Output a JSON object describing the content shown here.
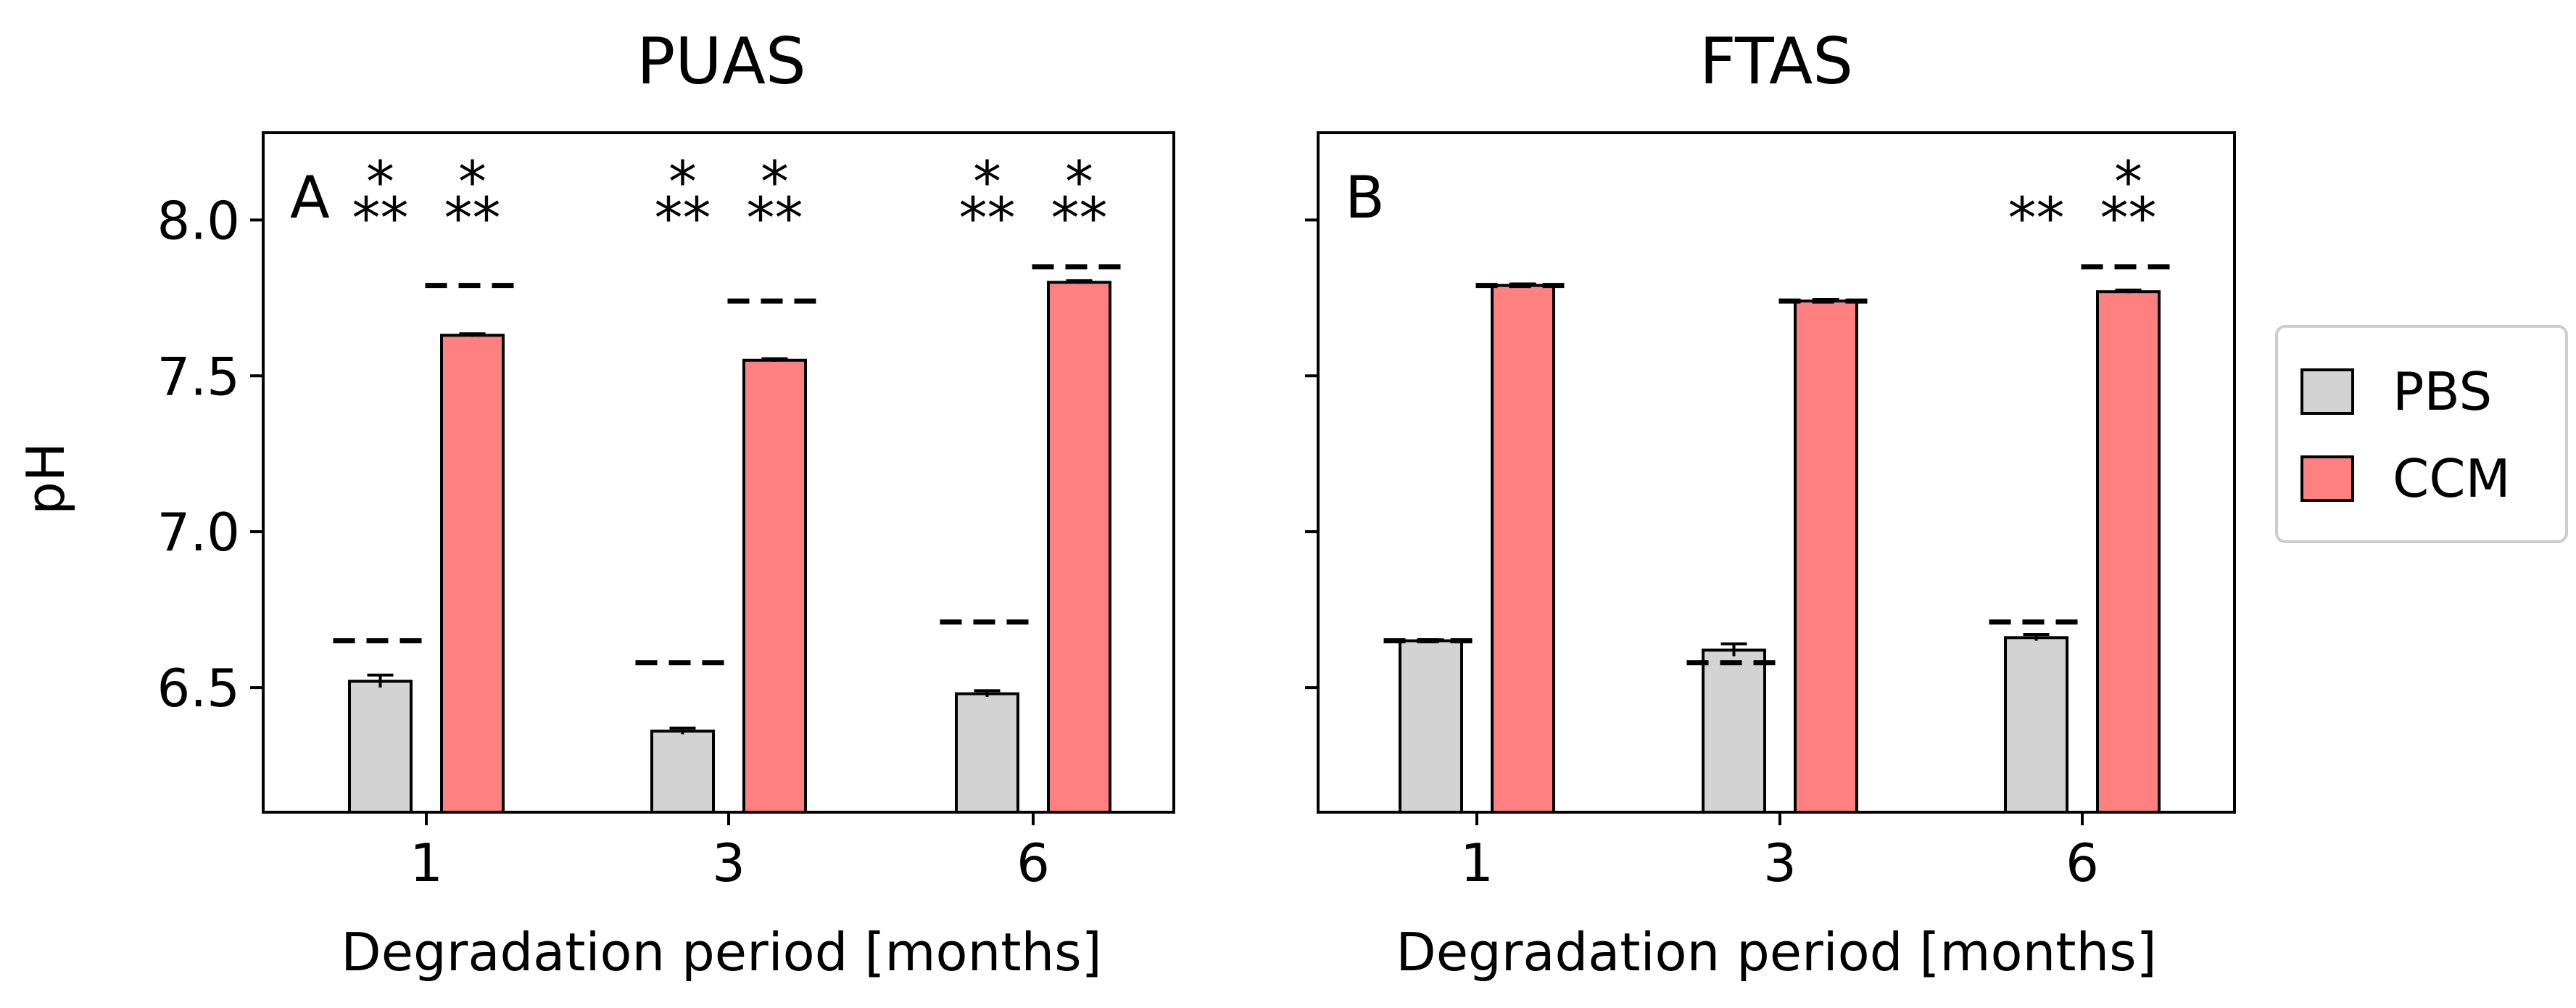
{
  "colors": {
    "PBS": "#d3d3d3",
    "CCM": "#ff8080",
    "edge": "#000000"
  },
  "ylabel": "pH",
  "legend": {
    "placement": "right",
    "entries": [
      {
        "label": "PBS",
        "color": "#d3d3d3"
      },
      {
        "label": "CCM",
        "color": "#ff8080"
      }
    ]
  },
  "chart_data": [
    {
      "type": "bar",
      "panel": "A",
      "title": "PUAS",
      "xlabel": "Degradation period [months]",
      "ylabel": "pH",
      "categories": [
        "1",
        "3",
        "6"
      ],
      "ylim": [
        6.1,
        8.28
      ],
      "yticks": [
        "6.5",
        "7.0",
        "7.5",
        "8.0"
      ],
      "series": [
        {
          "name": "PBS",
          "values": [
            6.52,
            6.36,
            6.48
          ],
          "errors": [
            0.02,
            0.01,
            0.01
          ],
          "dashed_reference": [
            6.65,
            6.58,
            6.71
          ],
          "annotations": [
            "",
            "",
            ""
          ]
        },
        {
          "name": "CCM",
          "values": [
            7.63,
            7.55,
            7.8
          ],
          "errors": [
            0.005,
            0.005,
            0.005
          ],
          "dashed_reference": [
            7.79,
            7.74,
            7.85
          ],
          "annotations": [
            "",
            "",
            ""
          ]
        }
      ],
      "significance": [
        {
          "category": "1",
          "series": "PBS",
          "label": "***"
        },
        {
          "category": "1",
          "series": "CCM",
          "label": "***"
        },
        {
          "category": "3",
          "series": "PBS",
          "label": "***"
        },
        {
          "category": "3",
          "series": "CCM",
          "label": "***"
        },
        {
          "category": "6",
          "series": "PBS",
          "label": "***"
        },
        {
          "category": "6",
          "series": "CCM",
          "label": "***"
        }
      ],
      "grid": false
    },
    {
      "type": "bar",
      "panel": "B",
      "title": "FTAS",
      "xlabel": "Degradation period [months]",
      "ylabel": "",
      "categories": [
        "1",
        "3",
        "6"
      ],
      "ylim": [
        6.1,
        8.28
      ],
      "yticks": [
        "",
        "",
        "",
        ""
      ],
      "series": [
        {
          "name": "PBS",
          "values": [
            6.65,
            6.62,
            6.66
          ],
          "errors": [
            0.003,
            0.02,
            0.01
          ],
          "dashed_reference": [
            6.65,
            6.58,
            6.71
          ]
        },
        {
          "name": "CCM",
          "values": [
            7.79,
            7.74,
            7.77
          ],
          "errors": [
            0.005,
            0.005,
            0.005
          ],
          "dashed_reference": [
            7.79,
            7.74,
            7.85
          ]
        }
      ],
      "significance": [
        {
          "category": "6",
          "series": "PBS",
          "label": "**"
        },
        {
          "category": "6",
          "series": "CCM",
          "label": "***"
        }
      ],
      "grid": false
    }
  ]
}
